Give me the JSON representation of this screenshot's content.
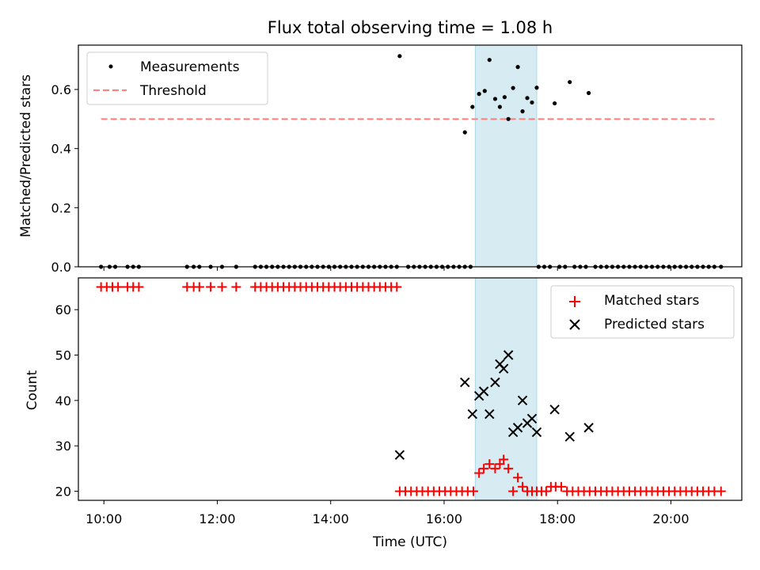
{
  "chart_data": [
    {
      "type": "scatter",
      "title": "Flux total observing time = 1.08 h",
      "xlabel": "",
      "ylabel": "Matched/Predicted stars",
      "xlim": [
        "09:33",
        "21:15"
      ],
      "ylim": [
        0,
        0.75
      ],
      "yticks": [
        0.0,
        0.2,
        0.4,
        0.6
      ],
      "ytick_labels": [
        "0.0",
        "0.2",
        "0.4",
        "0.6"
      ],
      "grid": false,
      "legend_position": "top-left",
      "highlight_span": {
        "start": "16:33",
        "end": "17:38",
        "color": "#add8e6"
      },
      "series": [
        {
          "name": "Measurements",
          "style": "point",
          "color": "#000000",
          "points": [
            [
              "09:57",
              0
            ],
            [
              "10:06",
              0
            ],
            [
              "10:12",
              0
            ],
            [
              "10:25",
              0
            ],
            [
              "10:31",
              0
            ],
            [
              "10:37",
              0
            ],
            [
              "11:28",
              0
            ],
            [
              "11:35",
              0
            ],
            [
              "11:41",
              0
            ],
            [
              "11:53",
              0
            ],
            [
              "12:05",
              0
            ],
            [
              "12:20",
              0
            ],
            [
              "12:40",
              0
            ],
            [
              "12:46",
              0
            ],
            [
              "12:52",
              0
            ],
            [
              "12:58",
              0
            ],
            [
              "13:04",
              0
            ],
            [
              "13:10",
              0
            ],
            [
              "13:16",
              0
            ],
            [
              "13:22",
              0
            ],
            [
              "13:28",
              0
            ],
            [
              "13:34",
              0
            ],
            [
              "13:40",
              0
            ],
            [
              "13:46",
              0
            ],
            [
              "13:52",
              0
            ],
            [
              "13:58",
              0
            ],
            [
              "14:04",
              0
            ],
            [
              "14:10",
              0
            ],
            [
              "14:16",
              0
            ],
            [
              "14:22",
              0
            ],
            [
              "14:28",
              0
            ],
            [
              "14:34",
              0
            ],
            [
              "14:40",
              0
            ],
            [
              "14:46",
              0
            ],
            [
              "14:52",
              0
            ],
            [
              "14:58",
              0
            ],
            [
              "15:04",
              0
            ],
            [
              "15:10",
              0
            ],
            [
              "15:13",
              0.713
            ],
            [
              "15:22",
              0
            ],
            [
              "15:28",
              0
            ],
            [
              "15:34",
              0
            ],
            [
              "15:40",
              0
            ],
            [
              "15:46",
              0
            ],
            [
              "15:52",
              0
            ],
            [
              "15:58",
              0
            ],
            [
              "16:04",
              0
            ],
            [
              "16:10",
              0
            ],
            [
              "16:16",
              0
            ],
            [
              "16:22",
              0
            ],
            [
              "16:28",
              0
            ],
            [
              "16:22",
              0.455
            ],
            [
              "16:30",
              0.541
            ],
            [
              "16:37",
              0.585
            ],
            [
              "16:43",
              0.595
            ],
            [
              "16:48",
              0.7
            ],
            [
              "16:54",
              0.568
            ],
            [
              "16:59",
              0.541
            ],
            [
              "17:04",
              0.574
            ],
            [
              "17:08",
              0.5
            ],
            [
              "17:13",
              0.605
            ],
            [
              "17:18",
              0.676
            ],
            [
              "17:23",
              0.526
            ],
            [
              "17:28",
              0.571
            ],
            [
              "17:33",
              0.556
            ],
            [
              "17:38",
              0.606
            ],
            [
              "17:40",
              0
            ],
            [
              "17:46",
              0
            ],
            [
              "17:52",
              0
            ],
            [
              "18:02",
              0
            ],
            [
              "18:08",
              0
            ],
            [
              "18:18",
              0
            ],
            [
              "18:24",
              0
            ],
            [
              "18:30",
              0
            ],
            [
              "18:40",
              0
            ],
            [
              "18:46",
              0
            ],
            [
              "18:52",
              0
            ],
            [
              "18:58",
              0
            ],
            [
              "19:04",
              0
            ],
            [
              "19:10",
              0
            ],
            [
              "19:16",
              0
            ],
            [
              "19:22",
              0
            ],
            [
              "19:28",
              0
            ],
            [
              "19:34",
              0
            ],
            [
              "19:40",
              0
            ],
            [
              "19:46",
              0
            ],
            [
              "19:52",
              0
            ],
            [
              "19:58",
              0
            ],
            [
              "20:04",
              0
            ],
            [
              "20:10",
              0
            ],
            [
              "20:16",
              0
            ],
            [
              "20:22",
              0
            ],
            [
              "20:28",
              0
            ],
            [
              "20:34",
              0
            ],
            [
              "20:40",
              0
            ],
            [
              "20:46",
              0
            ],
            [
              "20:53",
              0
            ],
            [
              "17:57",
              0.553
            ],
            [
              "18:13",
              0.625
            ],
            [
              "18:33",
              0.588
            ]
          ]
        },
        {
          "name": "Threshold",
          "style": "dashed-line",
          "color": "#ff7f7f",
          "points": [
            [
              "09:57",
              0.5
            ],
            [
              "20:46",
              0.5
            ]
          ]
        }
      ]
    },
    {
      "type": "scatter",
      "title": "",
      "xlabel": "Time (UTC)",
      "ylabel": "Count",
      "xlim": [
        "09:33",
        "21:15"
      ],
      "ylim": [
        18,
        67
      ],
      "yticks": [
        20,
        30,
        40,
        50,
        60
      ],
      "ytick_labels": [
        "20",
        "30",
        "40",
        "50",
        "60"
      ],
      "xticks": [
        "10:00",
        "12:00",
        "14:00",
        "16:00",
        "18:00",
        "20:00"
      ],
      "xtick_labels": [
        "10:00",
        "12:00",
        "14:00",
        "16:00",
        "18:00",
        "20:00"
      ],
      "grid": false,
      "legend_position": "top-right",
      "highlight_span": {
        "start": "16:33",
        "end": "17:38",
        "color": "#add8e6"
      },
      "series": [
        {
          "name": "Matched stars",
          "style": "plus",
          "color": "#ff0000",
          "points": [
            [
              "09:57",
              65
            ],
            [
              "10:03",
              65
            ],
            [
              "10:09",
              65
            ],
            [
              "10:15",
              65
            ],
            [
              "10:25",
              65
            ],
            [
              "10:31",
              65
            ],
            [
              "10:37",
              65
            ],
            [
              "11:28",
              65
            ],
            [
              "11:35",
              65
            ],
            [
              "11:41",
              65
            ],
            [
              "11:53",
              65
            ],
            [
              "12:05",
              65
            ],
            [
              "12:20",
              65
            ],
            [
              "12:40",
              65
            ],
            [
              "12:46",
              65
            ],
            [
              "12:52",
              65
            ],
            [
              "12:58",
              65
            ],
            [
              "13:04",
              65
            ],
            [
              "13:10",
              65
            ],
            [
              "13:16",
              65
            ],
            [
              "13:22",
              65
            ],
            [
              "13:28",
              65
            ],
            [
              "13:34",
              65
            ],
            [
              "13:40",
              65
            ],
            [
              "13:46",
              65
            ],
            [
              "13:52",
              65
            ],
            [
              "13:58",
              65
            ],
            [
              "14:04",
              65
            ],
            [
              "14:10",
              65
            ],
            [
              "14:16",
              65
            ],
            [
              "14:22",
              65
            ],
            [
              "14:28",
              65
            ],
            [
              "14:34",
              65
            ],
            [
              "14:40",
              65
            ],
            [
              "14:46",
              65
            ],
            [
              "14:52",
              65
            ],
            [
              "14:58",
              65
            ],
            [
              "15:04",
              65
            ],
            [
              "15:10",
              65
            ],
            [
              "15:13",
              20
            ],
            [
              "15:19",
              20
            ],
            [
              "15:25",
              20
            ],
            [
              "15:31",
              20
            ],
            [
              "15:37",
              20
            ],
            [
              "15:43",
              20
            ],
            [
              "15:49",
              20
            ],
            [
              "15:55",
              20
            ],
            [
              "16:01",
              20
            ],
            [
              "16:07",
              20
            ],
            [
              "16:13",
              20
            ],
            [
              "16:19",
              20
            ],
            [
              "16:25",
              20
            ],
            [
              "16:31",
              20
            ],
            [
              "16:37",
              24
            ],
            [
              "16:42",
              25
            ],
            [
              "16:48",
              26
            ],
            [
              "16:54",
              25
            ],
            [
              "16:59",
              26
            ],
            [
              "17:03",
              27
            ],
            [
              "17:08",
              25
            ],
            [
              "17:13",
              20
            ],
            [
              "17:18",
              23
            ],
            [
              "17:23",
              21
            ],
            [
              "17:28",
              20
            ],
            [
              "17:33",
              20
            ],
            [
              "17:38",
              20
            ],
            [
              "17:43",
              20
            ],
            [
              "17:48",
              20
            ],
            [
              "17:53",
              21
            ],
            [
              "17:58",
              21
            ],
            [
              "18:04",
              21
            ],
            [
              "18:10",
              20
            ],
            [
              "18:16",
              20
            ],
            [
              "18:22",
              20
            ],
            [
              "18:28",
              20
            ],
            [
              "18:34",
              20
            ],
            [
              "18:40",
              20
            ],
            [
              "18:46",
              20
            ],
            [
              "18:52",
              20
            ],
            [
              "18:58",
              20
            ],
            [
              "19:04",
              20
            ],
            [
              "19:10",
              20
            ],
            [
              "19:16",
              20
            ],
            [
              "19:22",
              20
            ],
            [
              "19:28",
              20
            ],
            [
              "19:34",
              20
            ],
            [
              "19:40",
              20
            ],
            [
              "19:46",
              20
            ],
            [
              "19:52",
              20
            ],
            [
              "19:58",
              20
            ],
            [
              "20:04",
              20
            ],
            [
              "20:10",
              20
            ],
            [
              "20:16",
              20
            ],
            [
              "20:22",
              20
            ],
            [
              "20:28",
              20
            ],
            [
              "20:34",
              20
            ],
            [
              "20:40",
              20
            ],
            [
              "20:46",
              20
            ],
            [
              "20:53",
              20
            ]
          ]
        },
        {
          "name": "Predicted stars",
          "style": "x",
          "color": "#000000",
          "points": [
            [
              "15:13",
              28
            ],
            [
              "16:22",
              44
            ],
            [
              "16:30",
              37
            ],
            [
              "16:37",
              41
            ],
            [
              "16:42",
              42
            ],
            [
              "16:48",
              37
            ],
            [
              "16:54",
              44
            ],
            [
              "16:59",
              48
            ],
            [
              "17:03",
              47
            ],
            [
              "17:08",
              50
            ],
            [
              "17:13",
              33
            ],
            [
              "17:18",
              34
            ],
            [
              "17:23",
              40
            ],
            [
              "17:28",
              35
            ],
            [
              "17:33",
              36
            ],
            [
              "17:38",
              33
            ],
            [
              "17:57",
              38
            ],
            [
              "18:13",
              32
            ],
            [
              "18:33",
              34
            ]
          ]
        }
      ]
    }
  ]
}
